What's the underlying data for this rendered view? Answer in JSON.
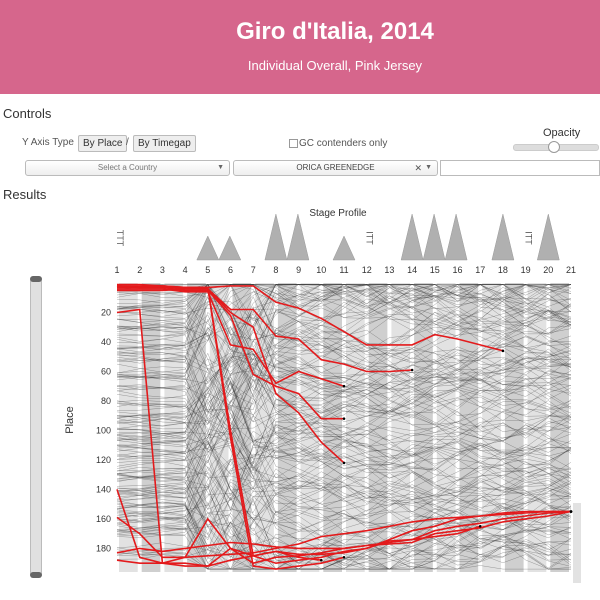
{
  "header": {
    "title": "Giro d'Italia, 2014",
    "subtitle": "Individual Overall, Pink Jersey"
  },
  "controls": {
    "section_label": "Controls",
    "y_axis_type_label": "Y Axis Type",
    "by_place_label": "By Place",
    "separator": "/",
    "by_timegap_label": "By Timegap",
    "gc_contenders_label": "GC contenders only",
    "opacity_label": "Opacity",
    "opacity_value": 0.3,
    "country_placeholder": "Select a Country",
    "team_selected": "ORICA GREENEDGE",
    "rider_search_value": ""
  },
  "results": {
    "section_label": "Results"
  },
  "colors": {
    "header_bg": "#d6668c",
    "highlight_line": "#e31a1c",
    "rider_line": "#333333",
    "band": "#cfcfcf"
  },
  "chart_data": {
    "type": "line",
    "title": "Stage Profile",
    "xlabel": "",
    "ylabel": "Place",
    "x_stages": [
      "1",
      "2",
      "3",
      "4",
      "5",
      "6",
      "7",
      "8",
      "9",
      "10",
      "11",
      "12",
      "13",
      "14",
      "15",
      "16",
      "17",
      "18",
      "19",
      "20",
      "21"
    ],
    "ylim": [
      0,
      196
    ],
    "y_ticks": [
      20,
      40,
      60,
      80,
      100,
      120,
      140,
      160,
      180
    ],
    "stage_profile": [
      {
        "stage": "1",
        "kind": "TTT"
      },
      {
        "stage": "5",
        "kind": "mountain",
        "peaks": 2,
        "height": "small"
      },
      {
        "stage": "8",
        "kind": "mountain",
        "peaks": 2,
        "height": "large"
      },
      {
        "stage": "11",
        "kind": "mountain",
        "peaks": 1,
        "height": "small"
      },
      {
        "stage": "12",
        "kind": "ITT"
      },
      {
        "stage": "14",
        "kind": "mountain",
        "peaks": 3,
        "height": "large"
      },
      {
        "stage": "18",
        "kind": "mountain",
        "peaks": 1,
        "height": "large"
      },
      {
        "stage": "19",
        "kind": "ITT"
      },
      {
        "stage": "20",
        "kind": "mountain",
        "peaks": 1,
        "height": "large"
      }
    ],
    "highlight_series": [
      {
        "values": [
          2,
          2,
          2,
          3,
          3,
          2,
          2,
          13,
          17,
          24,
          33,
          42,
          42,
          42,
          35,
          38,
          42,
          46
        ]
      },
      {
        "values": [
          5,
          5,
          5,
          4,
          4,
          18,
          18,
          36,
          38,
          52,
          55,
          60,
          60,
          59
        ]
      },
      {
        "values": [
          4,
          4,
          4,
          6,
          6,
          42,
          45,
          68,
          60,
          65,
          70
        ]
      },
      {
        "values": [
          3,
          3,
          3,
          5,
          5,
          22,
          62,
          70,
          75,
          92,
          92
        ]
      },
      {
        "values": [
          1,
          1,
          2,
          4,
          4,
          20,
          30,
          75,
          88,
          108,
          122
        ]
      },
      {
        "values": [
          159,
          170,
          186,
          186,
          185,
          184,
          183,
          180,
          177,
          172,
          170,
          168,
          165,
          162,
          160,
          159,
          158,
          157,
          156,
          155,
          155
        ]
      },
      {
        "values": [
          183,
          180,
          182,
          180,
          178,
          176,
          177,
          179,
          180,
          180,
          180,
          178,
          177,
          176,
          170,
          168,
          166,
          162,
          160,
          158,
          155
        ]
      },
      {
        "values": [
          188,
          190,
          190,
          192,
          192,
          188,
          185,
          182,
          184,
          184,
          183,
          180,
          175,
          174,
          168,
          165,
          163,
          160,
          158,
          156,
          155
        ]
      },
      {
        "values": [
          2,
          3,
          2,
          3,
          3,
          100,
          185,
          190,
          188,
          186,
          182,
          180,
          174,
          168,
          165,
          160,
          158,
          156,
          155,
          155,
          155
        ]
      },
      {
        "values": [
          2,
          3,
          3,
          3,
          3,
          105,
          192,
          194,
          192,
          190,
          186
        ]
      },
      {
        "values": [
          20,
          18,
          190,
          190,
          192,
          180,
          185,
          182,
          186,
          188
        ]
      },
      {
        "values": [
          140,
          186,
          190,
          186,
          160,
          180,
          190,
          186,
          185,
          183,
          180,
          178,
          176,
          174,
          172,
          170,
          165
        ]
      }
    ]
  }
}
